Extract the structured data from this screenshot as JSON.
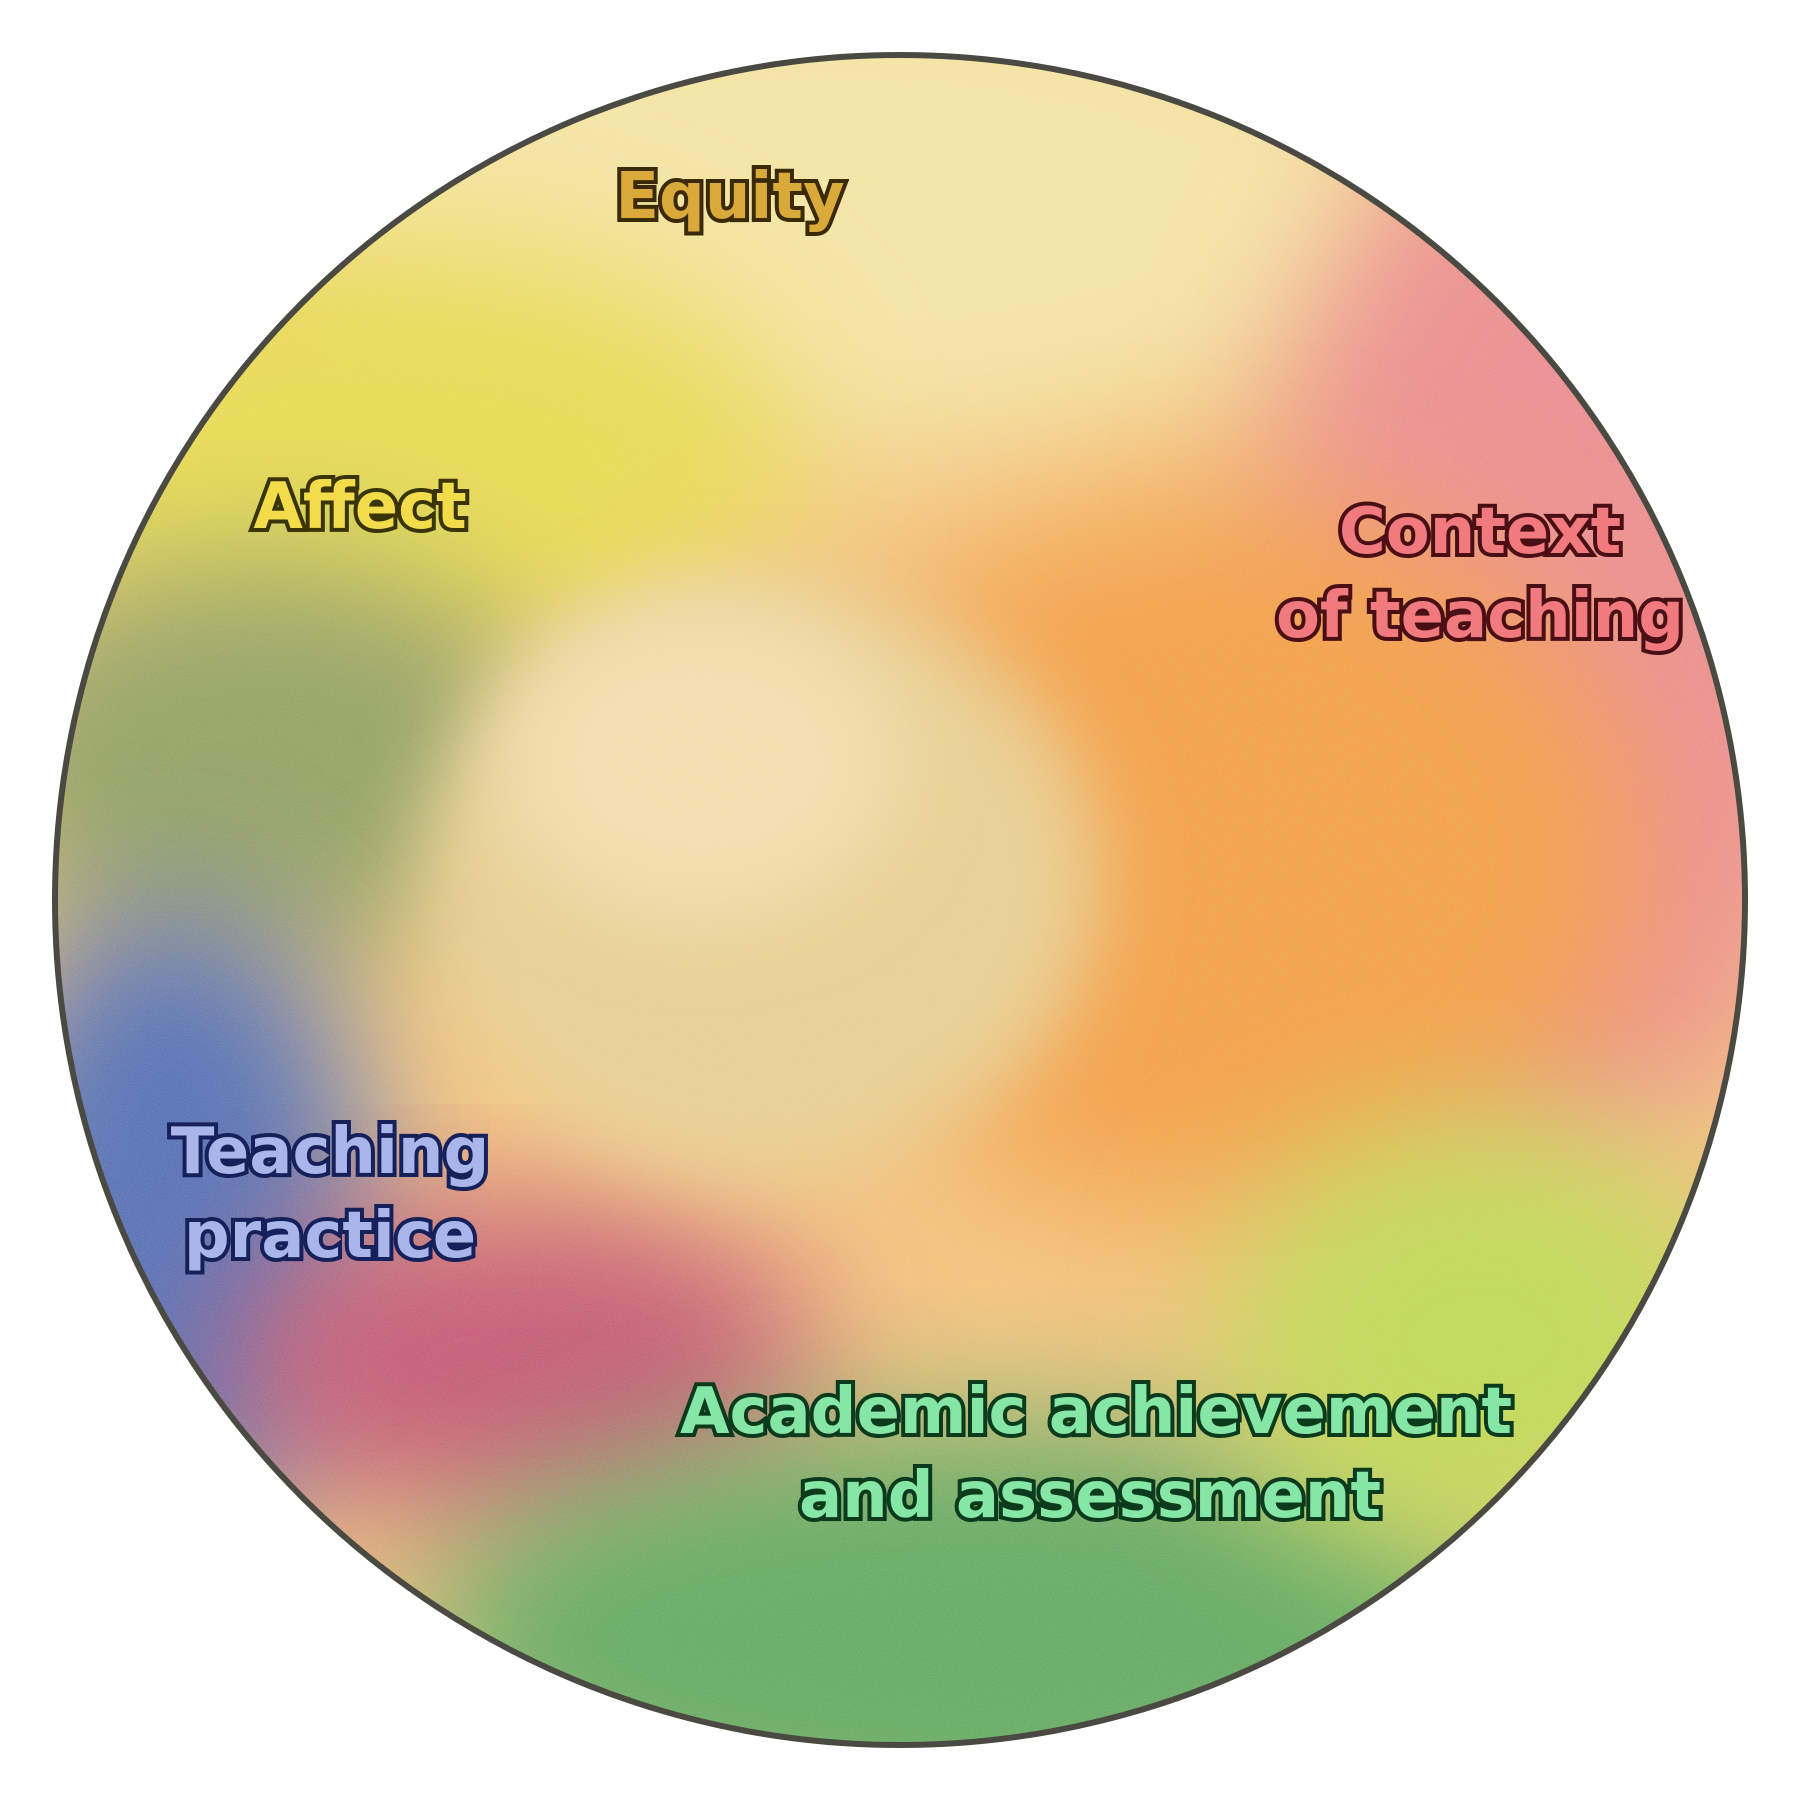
{
  "diagram": {
    "labels": {
      "equity": "Equity",
      "affect": "Affect",
      "context_line1": "Context",
      "context_line2": "of teaching",
      "teaching_line1": "Teaching",
      "teaching_line2": "practice",
      "academic_line1": "Academic achievement",
      "academic_line2": "and assessment"
    },
    "colors": {
      "equity": "#d9a93a",
      "affect": "#f2dc4a",
      "context": "#f07a7e",
      "teaching": "#a9b6ea",
      "academic": "#86e6a5",
      "outline": "#4a4a42",
      "center_gold": "#e3c27a",
      "orange": "#f0a040",
      "red": "#e8888a",
      "yellow": "#e8dc50",
      "olive": "#8fa060",
      "blue": "#4a68b0",
      "magenta": "#c0506e",
      "green": "#5aa858",
      "lime": "#b8d850"
    }
  }
}
